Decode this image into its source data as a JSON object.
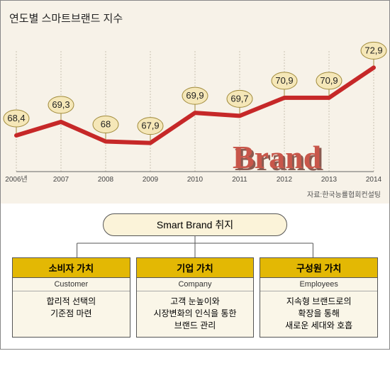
{
  "chart": {
    "title": "연도별 스마트브랜드 지수",
    "type": "line",
    "source_label": "자료:한국능률협회컨설팅",
    "background_color": "#f7f2e8",
    "line_color": "#c62828",
    "line_width": 6,
    "bubble_fill": "#f5e7b8",
    "bubble_stroke": "#a08a3a",
    "grid_color": "#c8c1b2",
    "axis_color": "#666",
    "x_labels": [
      "2006년",
      "2007",
      "2008",
      "2009",
      "2010",
      "2011",
      "2012",
      "2013",
      "2014"
    ],
    "values": [
      68.4,
      69.3,
      68,
      67.9,
      69.9,
      69.7,
      70.9,
      70.9,
      72.9
    ],
    "ylim": [
      66,
      74
    ],
    "label_fontsize": 13,
    "tick_fontsize": 10,
    "brand_text": "Brand",
    "brand_color": "#c8564a"
  },
  "tree": {
    "root": "Smart Brand 취지",
    "root_bg": "#fbf3d9",
    "header_bg": "#e3b804",
    "col_bg": "#faf6e8",
    "border_color": "#555",
    "cols": [
      {
        "ko": "소비자 가치",
        "en": "Customer",
        "body": [
          "합리적 선택의",
          "기준점 마련"
        ]
      },
      {
        "ko": "기업 가치",
        "en": "Company",
        "body": [
          "고객 눈높이와",
          "시장변화의 인식을 통한",
          "브랜드 관리"
        ]
      },
      {
        "ko": "구성원 가치",
        "en": "Employees",
        "body": [
          "지속형 브랜드로의",
          "확장을 통해",
          "새로운 세대와 호흡"
        ]
      }
    ]
  }
}
